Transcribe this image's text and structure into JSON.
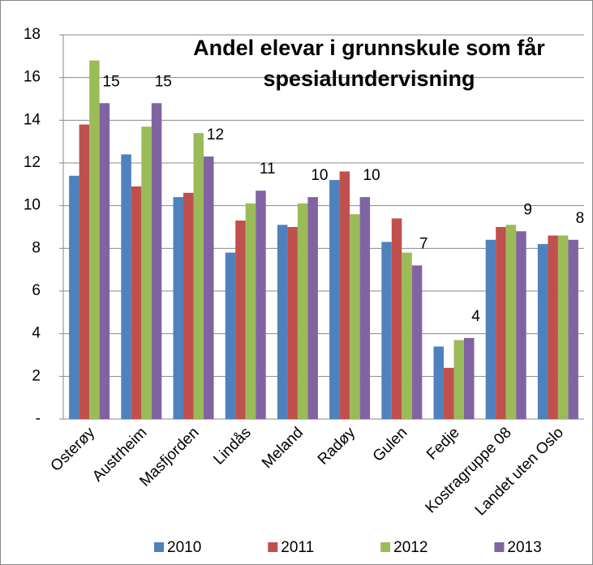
{
  "chart_data": {
    "type": "bar",
    "title": "Andel elevar i grunnskule som får spesialundervisning",
    "categories": [
      "Osterøy",
      "Austrheim",
      "Masfjorden",
      "Lindås",
      "Meland",
      "Radøy",
      "Gulen",
      "Fedje",
      "Kostragruppe 08",
      "Landet uten Oslo"
    ],
    "series": [
      {
        "name": "2010",
        "color": "#4f81bd",
        "values": [
          11.4,
          12.4,
          10.4,
          7.8,
          9.1,
          11.2,
          8.3,
          3.4,
          8.4,
          8.2
        ]
      },
      {
        "name": "2011",
        "color": "#c0504d",
        "values": [
          13.8,
          10.9,
          10.6,
          9.3,
          9.0,
          11.6,
          9.4,
          2.4,
          9.0,
          8.6
        ]
      },
      {
        "name": "2012",
        "color": "#9bbb59",
        "values": [
          16.8,
          13.7,
          13.4,
          10.1,
          10.1,
          9.6,
          7.8,
          3.7,
          9.1,
          8.6
        ]
      },
      {
        "name": "2013",
        "color": "#8064a2",
        "values": [
          14.8,
          14.8,
          12.3,
          10.7,
          10.4,
          10.4,
          7.2,
          3.8,
          8.8,
          8.4
        ],
        "value_labels": [
          "15",
          "15",
          "12",
          "11",
          "10",
          "10",
          "7",
          "4",
          "9",
          "8"
        ]
      }
    ],
    "ylim": [
      0,
      18
    ],
    "yticks": [
      {
        "value": 0,
        "label": "-"
      },
      2,
      4,
      6,
      8,
      10,
      12,
      14,
      16,
      18
    ],
    "grid": true,
    "legend": "bottom"
  }
}
